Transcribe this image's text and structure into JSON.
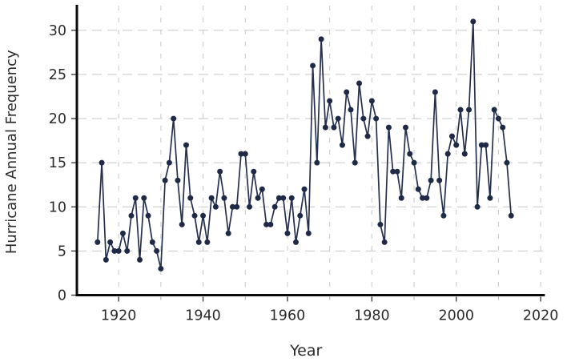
{
  "chart_data": {
    "type": "line",
    "title": "",
    "xlabel": "Year",
    "ylabel": "Hurricane Annual Frequency",
    "legend": "none",
    "grid": "dashed",
    "marker": "circle",
    "x_start_year": 1915,
    "x": [
      1915,
      1916,
      1917,
      1918,
      1919,
      1920,
      1921,
      1922,
      1923,
      1924,
      1925,
      1926,
      1927,
      1928,
      1929,
      1930,
      1931,
      1932,
      1933,
      1934,
      1935,
      1936,
      1937,
      1938,
      1939,
      1940,
      1941,
      1942,
      1943,
      1944,
      1945,
      1946,
      1947,
      1948,
      1949,
      1950,
      1951,
      1952,
      1953,
      1954,
      1955,
      1956,
      1957,
      1958,
      1959,
      1960,
      1961,
      1962,
      1963,
      1964,
      1965,
      1966,
      1967,
      1968,
      1969,
      1970,
      1971,
      1972,
      1973,
      1974,
      1975,
      1976,
      1977,
      1978,
      1979,
      1980,
      1981,
      1982,
      1983,
      1984,
      1985,
      1986,
      1987,
      1988,
      1989,
      1990,
      1991,
      1992,
      1993,
      1994,
      1995,
      1996,
      1997,
      1998,
      1999,
      2000,
      2001,
      2002,
      2003,
      2004,
      2005,
      2006,
      2007,
      2008,
      2009,
      2010,
      2011,
      2012,
      2013
    ],
    "values": [
      6,
      15,
      4,
      6,
      5,
      5,
      7,
      5,
      9,
      11,
      4,
      11,
      9,
      6,
      5,
      3,
      13,
      15,
      20,
      13,
      8,
      17,
      11,
      9,
      6,
      9,
      6,
      11,
      10,
      14,
      11,
      7,
      10,
      10,
      16,
      16,
      10,
      14,
      11,
      12,
      8,
      8,
      10,
      11,
      11,
      7,
      11,
      6,
      9,
      12,
      7,
      26,
      15,
      29,
      19,
      22,
      19,
      20,
      17,
      23,
      21,
      15,
      24,
      20,
      18,
      22,
      20,
      8,
      6,
      19,
      14,
      14,
      11,
      19,
      16,
      15,
      12,
      11,
      11,
      13,
      23,
      13,
      9,
      16,
      18,
      17,
      21,
      16,
      21,
      31,
      10,
      17,
      17,
      11,
      21,
      20,
      19,
      15,
      9
    ],
    "x_ticks": [
      1920,
      1940,
      1960,
      1980,
      2000,
      2020
    ],
    "x_minor_ticks": [
      1930,
      1950,
      1970,
      1990,
      2010
    ],
    "y_ticks": [
      0,
      5,
      10,
      15,
      20,
      25,
      30
    ],
    "xlim": [
      1910.1,
      2021
    ],
    "ylim": [
      0,
      32.8
    ],
    "colors": {
      "line": "#25304e",
      "marker": "#1f2a47",
      "grid": "#cccccc",
      "spine": "#0a0a0a",
      "tick_label": "#2b2b2b",
      "axis_label": "#2b2b2b",
      "minor_tick": "#b3b3b3",
      "major_tick": "#333333"
    }
  }
}
